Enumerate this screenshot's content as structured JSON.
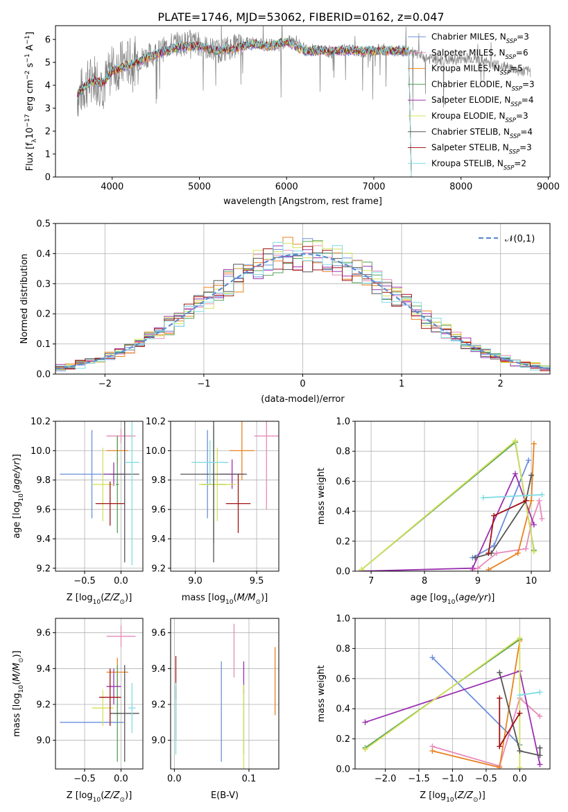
{
  "figure": {
    "title": "PLATE=1746, MJD=53062, FIBERID=0162, z=0.047"
  },
  "styles": {
    "colors": {
      "Chabrier MILES": "#6a8fdc",
      "Salpeter MILES": "#e68ab8",
      "Kroupa MILES": "#e8821e",
      "Chabrier ELODIE": "#55a058",
      "Salpeter ELODIE": "#9b30b0",
      "Kroupa ELODIE": "#d4e05a",
      "Chabrier STELIB": "#555555",
      "Salpeter STELIB": "#a01010",
      "Kroupa STELIB": "#7fdce4",
      "grid": "#b0b0b0",
      "data": "#808080",
      "normal": "#5b8bd0"
    }
  },
  "chart_data": [
    {
      "id": "spectrum",
      "type": "line",
      "xlabel": "wavelength [Angstrom, rest frame]",
      "ylabel": "Flux [f_λ10^{-17} erg cm^{-2} s^{-1} A^{-1}]",
      "xlim": [
        3350,
        9020
      ],
      "ylim": [
        0,
        6.6
      ],
      "xticks": [
        4000,
        5000,
        6000,
        7000,
        8000,
        9000
      ],
      "yticks": [
        0,
        1,
        2,
        3,
        4,
        5,
        6
      ],
      "legend_loc": "right",
      "legend": [
        {
          "label": "Chabrier MILES",
          "ssp": "3"
        },
        {
          "label": "Salpeter MILES",
          "ssp": "6"
        },
        {
          "label": "Kroupa MILES",
          "ssp": "5"
        },
        {
          "label": "Chabrier ELODIE",
          "ssp": "3"
        },
        {
          "label": "Salpeter ELODIE",
          "ssp": "4"
        },
        {
          "label": "Kroupa ELODIE",
          "ssp": "3"
        },
        {
          "label": "Chabrier STELIB",
          "ssp": "4"
        },
        {
          "label": "Salpeter STELIB",
          "ssp": "3"
        },
        {
          "label": "Kroupa STELIB",
          "ssp": "2"
        }
      ],
      "data_continuum": {
        "x": [
          3600,
          3700,
          3800,
          3900,
          4000,
          4100,
          4200,
          4300,
          4400,
          4500,
          4600,
          4700,
          4800,
          4900,
          5000,
          5100,
          5200,
          5300,
          5400,
          5500,
          5600,
          5700,
          5800,
          5900,
          6000,
          6100,
          6200,
          6300,
          6400,
          6500,
          6600,
          6700,
          6800,
          6900,
          7000,
          7100,
          7200,
          7300,
          7400,
          7500,
          7700,
          7900,
          8100,
          8300,
          8500,
          8700,
          8800
        ],
        "y": [
          3.5,
          4.0,
          4.4,
          4.0,
          4.7,
          4.9,
          5.0,
          5.1,
          5.3,
          5.4,
          5.6,
          5.8,
          5.8,
          5.9,
          5.8,
          5.6,
          5.5,
          5.6,
          5.7,
          5.8,
          5.9,
          5.8,
          5.8,
          5.7,
          5.9,
          6.0,
          5.6,
          5.5,
          5.6,
          5.4,
          5.5,
          5.6,
          5.5,
          5.4,
          5.5,
          5.6,
          5.5,
          5.5,
          5.5,
          5.3,
          5.1,
          5.1,
          5.2,
          5.0,
          4.8,
          4.6,
          4.6
        ]
      },
      "model_continuum": {
        "x": [
          3600,
          3700,
          3800,
          3900,
          4000,
          4200,
          4400,
          4600,
          4800,
          5000,
          5200,
          5400,
          5600,
          5800,
          6000,
          6200,
          6400,
          6600,
          6800,
          7000,
          7200,
          7400
        ],
        "y": [
          3.6,
          4.0,
          4.2,
          4.1,
          4.6,
          4.9,
          5.2,
          5.5,
          5.7,
          5.7,
          5.5,
          5.6,
          5.8,
          5.7,
          5.9,
          5.5,
          5.5,
          5.5,
          5.5,
          5.5,
          5.5,
          5.5
        ]
      }
    },
    {
      "id": "residual_hist",
      "type": "bar",
      "xlabel": "(data-model)/error",
      "ylabel": "Normed distribution",
      "xlim": [
        -2.5,
        2.5
      ],
      "ylim": [
        0,
        0.5
      ],
      "xticks": [
        -2,
        -1,
        0,
        1,
        2
      ],
      "yticks": [
        0.0,
        0.1,
        0.2,
        0.3,
        0.4,
        0.5
      ],
      "legend": [
        "𝒩(0,1)"
      ],
      "legend_loc": "top-right",
      "bin_width": 0.1,
      "bin_start": -2.5
    },
    {
      "id": "age_vs_Z",
      "type": "scatter",
      "xlabel": "Z [log10(Z/Z⊙)]",
      "ylabel": "age [log10(age/yr)]",
      "xlim": [
        -0.9,
        0.3
      ],
      "ylim": [
        9.18,
        10.2
      ],
      "xticks": [
        -0.5,
        0.0
      ],
      "yticks": [
        9.2,
        9.4,
        9.6,
        9.8,
        10.0,
        10.2
      ],
      "points": [
        {
          "model": "Chabrier MILES",
          "x": -0.4,
          "y": 9.84,
          "xerr": 0.44,
          "yerr": 0.3
        },
        {
          "model": "Salpeter MILES",
          "x": 0.0,
          "y": 10.1,
          "xerr": 0.2,
          "yerr": 0.05
        },
        {
          "model": "Kroupa MILES",
          "x": -0.05,
          "y": 10.0,
          "xerr": 0.15,
          "yerr": 0.1
        },
        {
          "model": "Chabrier ELODIE",
          "x": -0.05,
          "y": 9.77,
          "xerr": 0.02,
          "yerr": 0.33
        },
        {
          "model": "Salpeter ELODIE",
          "x": -0.1,
          "y": 9.84,
          "xerr": 0.15,
          "yerr": 0.08
        },
        {
          "model": "Kroupa ELODIE",
          "x": -0.25,
          "y": 9.77,
          "xerr": 0.15,
          "yerr": 0.25
        },
        {
          "model": "Chabrier STELIB",
          "x": 0.05,
          "y": 9.84,
          "xerr": 0.2,
          "yerr": 0.6
        },
        {
          "model": "Salpeter STELIB",
          "x": -0.15,
          "y": 9.64,
          "xerr": 0.2,
          "yerr": 0.15
        },
        {
          "model": "Kroupa STELIB",
          "x": 0.15,
          "y": 9.92,
          "xerr": 0.1,
          "yerr": 0.7
        }
      ]
    },
    {
      "id": "age_vs_mass",
      "type": "scatter",
      "xlabel": "mass [log10(M/M⊙)]",
      "xlim": [
        8.8,
        9.68
      ],
      "ylim": [
        9.18,
        10.2
      ],
      "xticks": [
        9.0,
        9.5
      ],
      "yticks": [
        9.2,
        9.4,
        9.6,
        9.8,
        10.0,
        10.2
      ],
      "points": [
        {
          "model": "Chabrier MILES",
          "x": 9.1,
          "y": 9.84,
          "xerr": 0.0,
          "yerr": 0.3
        },
        {
          "model": "Salpeter MILES",
          "x": 9.58,
          "y": 10.1,
          "xerr": 0.1,
          "yerr": 0.5
        },
        {
          "model": "Kroupa MILES",
          "x": 9.38,
          "y": 10.0,
          "xerr": 0.1,
          "yerr": 0.2
        },
        {
          "model": "Chabrier ELODIE",
          "x": 9.15,
          "y": 9.77,
          "xerr": 0.1,
          "yerr": 0.4
        },
        {
          "model": "Salpeter ELODIE",
          "x": 9.3,
          "y": 9.84,
          "xerr": 0.1,
          "yerr": 0.1
        },
        {
          "model": "Kroupa ELODIE",
          "x": 9.18,
          "y": 9.77,
          "xerr": 0.15,
          "yerr": 0.25
        },
        {
          "model": "Chabrier STELIB",
          "x": 9.15,
          "y": 9.84,
          "xerr": 0.27,
          "yerr": 0.6
        },
        {
          "model": "Salpeter STELIB",
          "x": 9.35,
          "y": 9.64,
          "xerr": 0.1,
          "yerr": 0.2
        },
        {
          "model": "Kroupa STELIB",
          "x": 9.12,
          "y": 9.92,
          "xerr": 0.15,
          "yerr": 0.15
        }
      ]
    },
    {
      "id": "massweight_vs_age",
      "type": "line",
      "xlabel": "age [log10(age/yr)]",
      "ylabel": "mass weight",
      "xlim": [
        6.7,
        10.35
      ],
      "ylim": [
        0,
        1.0
      ],
      "xticks": [
        7,
        8,
        9,
        10
      ],
      "yticks": [
        0.0,
        0.2,
        0.4,
        0.6,
        0.8,
        1.0
      ],
      "series": [
        {
          "model": "Chabrier MILES",
          "x": [
            8.9,
            9.3,
            9.95
          ],
          "y": [
            0.09,
            0.17,
            0.74
          ]
        },
        {
          "model": "Salpeter MILES",
          "x": [
            8.9,
            9.0,
            9.35,
            9.9,
            10.0,
            10.15,
            10.2
          ],
          "y": [
            0.01,
            0.02,
            0.12,
            0.15,
            0.32,
            0.47,
            0.35
          ]
        },
        {
          "model": "Kroupa MILES",
          "x": [
            9.2,
            9.75,
            10.0,
            10.05
          ],
          "y": [
            0.01,
            0.12,
            0.47,
            0.85
          ]
        },
        {
          "model": "Chabrier ELODIE",
          "x": [
            6.82,
            9.7,
            10.05
          ],
          "y": [
            0.01,
            0.86,
            0.14
          ]
        },
        {
          "model": "Salpeter ELODIE",
          "x": [
            6.82,
            8.9,
            9.7,
            10.05
          ],
          "y": [
            0.0,
            0.02,
            0.65,
            0.31
          ]
        },
        {
          "model": "Kroupa ELODIE",
          "x": [
            6.82,
            9.7,
            10.05
          ],
          "y": [
            0.01,
            0.87,
            0.13
          ]
        },
        {
          "model": "Chabrier STELIB",
          "x": [
            8.95,
            9.25,
            9.9,
            10.0
          ],
          "y": [
            0.09,
            0.12,
            0.47,
            0.64
          ]
        },
        {
          "model": "Salpeter STELIB",
          "x": [
            9.2,
            9.3,
            9.9
          ],
          "y": [
            0.12,
            0.37,
            0.47
          ]
        },
        {
          "model": "Kroupa STELIB",
          "x": [
            9.1,
            10.2
          ],
          "y": [
            0.49,
            0.51
          ]
        }
      ]
    },
    {
      "id": "mass_vs_Z",
      "type": "scatter",
      "xlabel": "Z [log10(Z/Z⊙)]",
      "ylabel": "mass [log10(M/M⊙)]",
      "xlim": [
        -0.9,
        0.3
      ],
      "ylim": [
        8.84,
        9.68
      ],
      "xticks": [
        -0.5,
        0.0
      ],
      "yticks": [
        9.0,
        9.2,
        9.4,
        9.6
      ],
      "points": [
        {
          "model": "Chabrier MILES",
          "x": -0.4,
          "y": 9.1,
          "xerr": 0.44,
          "yerr": 0.0
        },
        {
          "model": "Salpeter MILES",
          "x": 0.0,
          "y": 9.58,
          "xerr": 0.2,
          "yerr": 0.06
        },
        {
          "model": "Kroupa MILES",
          "x": -0.05,
          "y": 9.38,
          "xerr": 0.15,
          "yerr": 0.08
        },
        {
          "model": "Chabrier ELODIE",
          "x": -0.05,
          "y": 9.15,
          "xerr": 0.02,
          "yerr": 0.27
        },
        {
          "model": "Salpeter ELODIE",
          "x": -0.1,
          "y": 9.3,
          "xerr": 0.1,
          "yerr": 0.1
        },
        {
          "model": "Kroupa ELODIE",
          "x": -0.25,
          "y": 9.18,
          "xerr": 0.15,
          "yerr": 0.1
        },
        {
          "model": "Chabrier STELIB",
          "x": 0.05,
          "y": 9.15,
          "xerr": 0.2,
          "yerr": 0.27
        },
        {
          "model": "Salpeter STELIB",
          "x": -0.15,
          "y": 9.24,
          "xerr": 0.15,
          "yerr": 0.16
        },
        {
          "model": "Kroupa STELIB",
          "x": 0.15,
          "y": 9.18,
          "xerr": 0.05,
          "yerr": 0.14
        }
      ]
    },
    {
      "id": "mass_vs_ebv",
      "type": "scatter",
      "xlabel": "E(B-V)",
      "xlim": [
        -0.005,
        0.14
      ],
      "ylim": [
        8.84,
        9.68
      ],
      "xticks": [
        0.0,
        0.1
      ],
      "yticks": [
        9.0,
        9.2,
        9.4,
        9.6
      ],
      "points": [
        {
          "model": "Chabrier MILES",
          "x": 0.063,
          "y": 9.16,
          "yerr": 0.28
        },
        {
          "model": "Salpeter MILES",
          "x": 0.08,
          "y": 9.5,
          "yerr": 0.15
        },
        {
          "model": "Kroupa MILES",
          "x": 0.135,
          "y": 9.33,
          "yerr": 0.19
        },
        {
          "model": "Chabrier ELODIE",
          "x": 0.093,
          "y": 9.1,
          "yerr": 0.18
        },
        {
          "model": "Salpeter ELODIE",
          "x": 0.093,
          "y": 9.35,
          "yerr": 0.09
        },
        {
          "model": "Kroupa ELODIE",
          "x": 0.093,
          "y": 9.05,
          "yerr": 0.26
        },
        {
          "model": "Chabrier STELIB",
          "x": 0.002,
          "y": 9.15,
          "yerr": 0.15
        },
        {
          "model": "Salpeter STELIB",
          "x": 0.002,
          "y": 9.35,
          "yerr": 0.12
        },
        {
          "model": "Kroupa STELIB",
          "x": 0.002,
          "y": 9.12,
          "yerr": 0.2
        }
      ]
    },
    {
      "id": "massweight_vs_Z",
      "type": "line",
      "xlabel": "Z [log10(Z/Z⊙)]",
      "ylabel": "mass weight",
      "xlim": [
        -2.45,
        0.45
      ],
      "ylim": [
        0,
        1.0
      ],
      "xticks": [
        -2.0,
        -1.5,
        -1.0,
        -0.5,
        0.0
      ],
      "yticks": [
        0.0,
        0.2,
        0.4,
        0.6,
        0.8,
        1.0
      ],
      "series": [
        {
          "model": "Chabrier MILES",
          "x": [
            -1.3,
            0.0
          ],
          "y": [
            0.74,
            0.16
          ]
        },
        {
          "model": "Salpeter MILES",
          "x": [
            -1.3,
            -0.3,
            0.0,
            0.3
          ],
          "y": [
            0.15,
            0.02,
            0.47,
            0.35
          ]
        },
        {
          "model": "Kroupa MILES",
          "x": [
            -1.3,
            -0.3,
            0.0
          ],
          "y": [
            0.12,
            0.01,
            0.85
          ]
        },
        {
          "model": "Chabrier ELODIE",
          "x": [
            -2.3,
            0.0
          ],
          "y": [
            0.14,
            0.86
          ]
        },
        {
          "model": "Salpeter ELODIE",
          "x": [
            -2.3,
            0.0,
            0.3
          ],
          "y": [
            0.31,
            0.65,
            0.03
          ]
        },
        {
          "model": "Kroupa ELODIE",
          "x": [
            -2.3,
            0.0,
            0.0
          ],
          "y": [
            0.13,
            0.87,
            0.01
          ]
        },
        {
          "model": "Chabrier STELIB",
          "x": [
            -0.3,
            0.0,
            0.3,
            0.3
          ],
          "y": [
            0.64,
            0.12,
            0.09,
            0.14
          ]
        },
        {
          "model": "Salpeter STELIB",
          "x": [
            -0.3,
            -0.3,
            0.0
          ],
          "y": [
            0.47,
            0.15,
            0.37
          ]
        },
        {
          "model": "Kroupa STELIB",
          "x": [
            0.0,
            0.3
          ],
          "y": [
            0.49,
            0.51
          ]
        }
      ]
    }
  ]
}
